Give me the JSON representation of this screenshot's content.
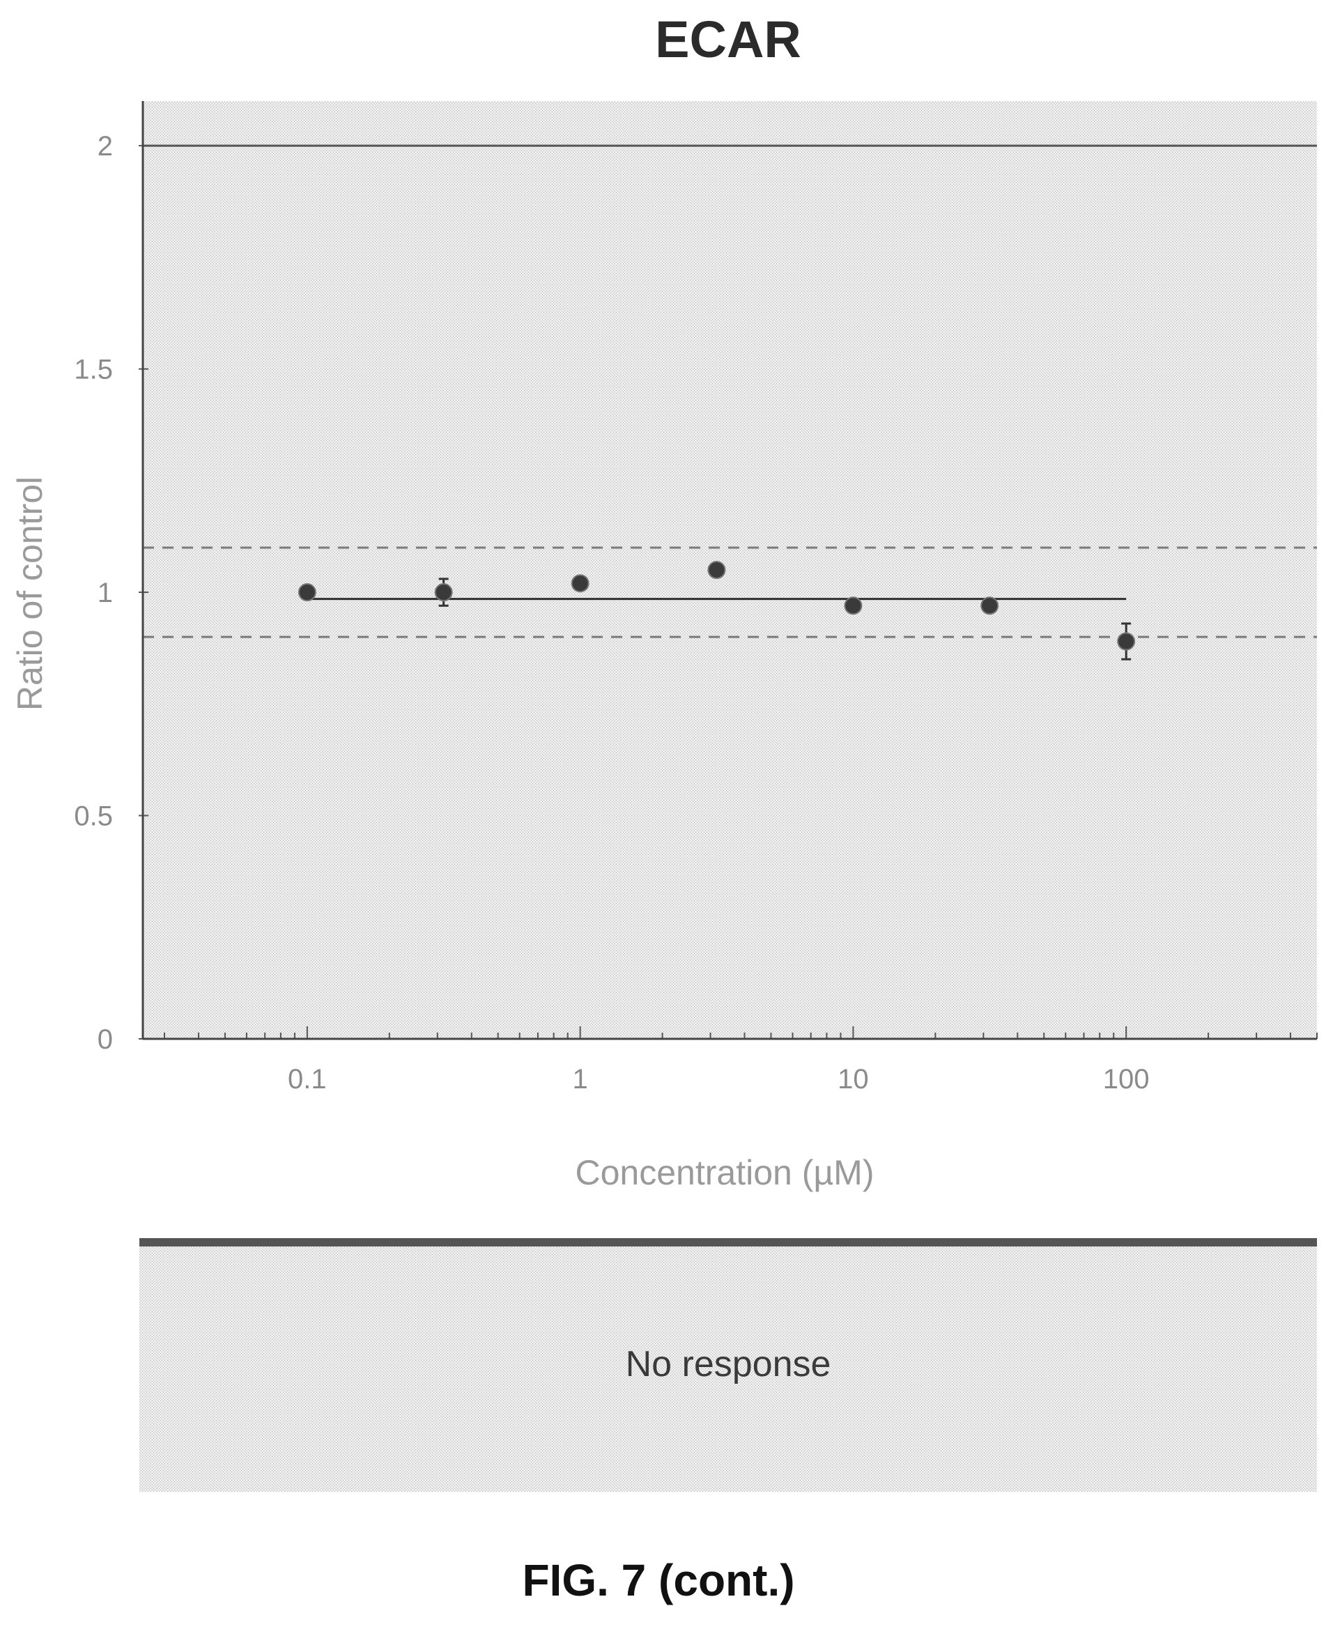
{
  "chart_data": {
    "type": "scatter",
    "title": "ECAR",
    "xlabel": "Concentration (µM)",
    "ylabel": "Ratio of control",
    "x_scale": "log",
    "xlim": [
      0.025,
      500
    ],
    "ylim": [
      0,
      2.1
    ],
    "x_ticks": [
      {
        "value": 0.1,
        "label": "0.1"
      },
      {
        "value": 1,
        "label": "1"
      },
      {
        "value": 10,
        "label": "10"
      },
      {
        "value": 100,
        "label": "100"
      }
    ],
    "y_ticks": [
      {
        "value": 0,
        "label": "0"
      },
      {
        "value": 0.5,
        "label": "0.5"
      },
      {
        "value": 1,
        "label": "1"
      },
      {
        "value": 1.5,
        "label": "1.5"
      },
      {
        "value": 2,
        "label": "2"
      }
    ],
    "series": [
      {
        "x": [
          0.1,
          0.316,
          1,
          3.16,
          10,
          31.6,
          100
        ],
        "y": [
          1.0,
          1.0,
          1.02,
          1.05,
          0.97,
          0.97,
          0.89
        ],
        "y_error": [
          0.01,
          0.03,
          0.01,
          0.01,
          0.01,
          0.01,
          0.04
        ]
      }
    ],
    "fit_line": {
      "x_start": 0.1,
      "x_end": 100,
      "y": 0.985
    },
    "reference_lines": [
      {
        "y": 2.0,
        "style": "solid"
      },
      {
        "y": 1.1,
        "style": "dashed"
      },
      {
        "y": 0.9,
        "style": "dashed"
      }
    ],
    "grid": false,
    "legend": "none"
  },
  "result_text": "No response",
  "figure_caption": "FIG. 7 (cont.)",
  "colors": {
    "plot_background": "#e2e2e2",
    "marker": "#3a3a3a",
    "caption": "#111111"
  }
}
